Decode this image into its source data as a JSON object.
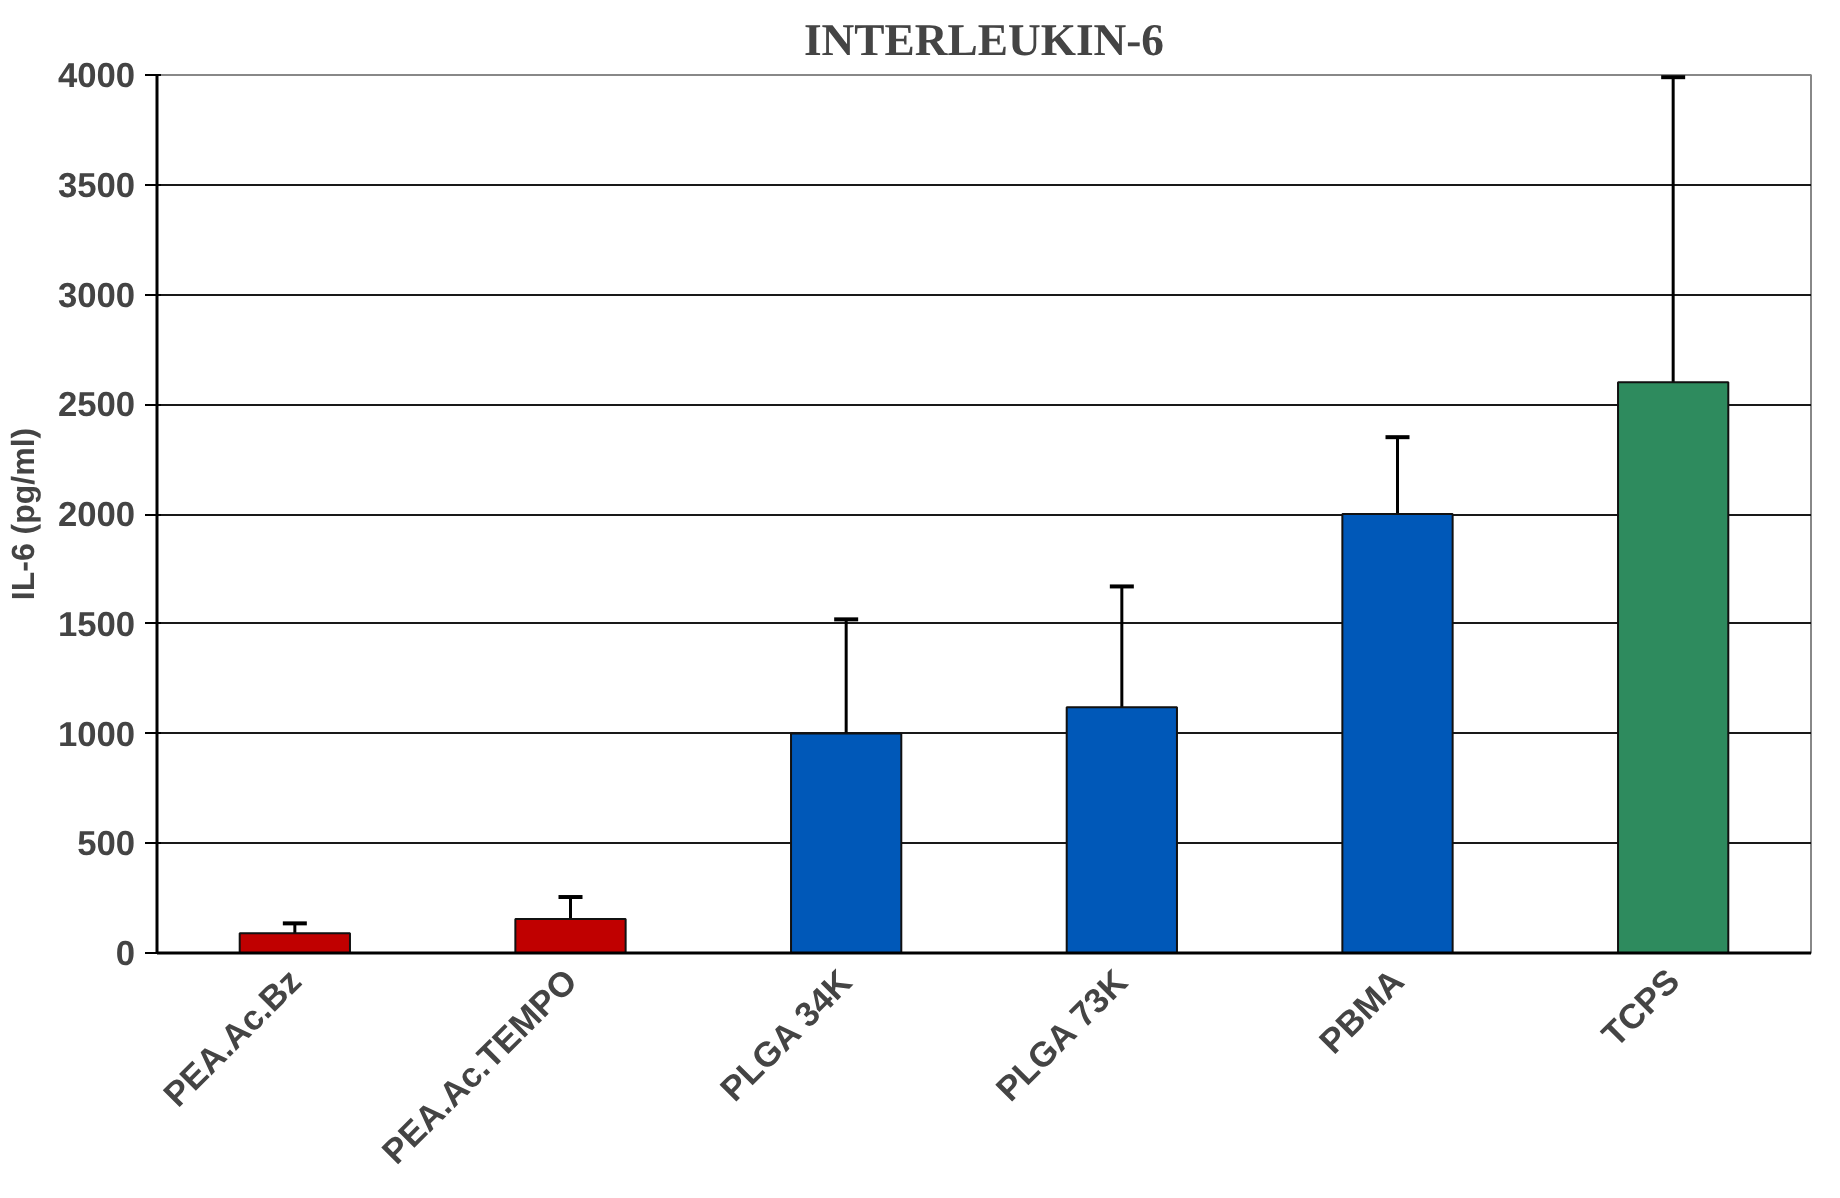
{
  "chart_data": {
    "type": "bar",
    "title": "INTERLEUKIN-6",
    "ylabel": "IL-6 (pg/ml)",
    "categories": [
      "PEA.Ac.Bz",
      "PEA.Ac.TEMPO",
      "PLGA 34K",
      "PLGA 73K",
      "PBMA",
      "TCPS"
    ],
    "values": [
      90,
      155,
      1000,
      1120,
      2000,
      2600
    ],
    "colors": [
      "#c00000",
      "#c00000",
      "#0058b8",
      "#0058b8",
      "#0058b8",
      "#2e8b5e"
    ],
    "errors": [
      45,
      100,
      520,
      550,
      350,
      1390
    ],
    "ylim": [
      0,
      4000
    ],
    "yticks": [
      0,
      500,
      1000,
      1500,
      2000,
      2500,
      3000,
      3500,
      4000
    ],
    "grid": "y"
  }
}
